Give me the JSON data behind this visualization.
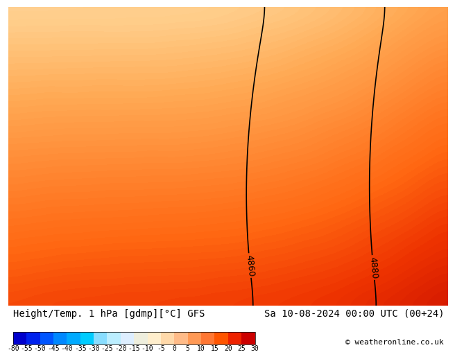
{
  "title_left": "Height/Temp. 1 hPa [gdmp][°C] GFS",
  "title_right": "Sa 10-08-2024 00:00 UTC (00+24)",
  "copyright": "© weatheronline.co.uk",
  "colorbar_levels": [
    -80,
    -55,
    -50,
    -45,
    -40,
    -35,
    -30,
    -25,
    -20,
    -15,
    -10,
    -5,
    0,
    5,
    10,
    15,
    20,
    25,
    30
  ],
  "colorbar_colors": [
    "#0000cd",
    "#0022ee",
    "#0055ff",
    "#0088ff",
    "#00aaff",
    "#00ccff",
    "#88ddff",
    "#bbeeff",
    "#ddeeff",
    "#eeeedd",
    "#ffeecc",
    "#ffd9aa",
    "#ffbb88",
    "#ff9955",
    "#ff7733",
    "#ff5500",
    "#ee2200",
    "#cc0000"
  ],
  "background_color": "#ffffff",
  "map_background": "#ffa040",
  "contour_color": "#000000",
  "contour_linewidth": 1.2,
  "label_fontsize": 9,
  "title_fontsize": 10,
  "colorbar_tick_fontsize": 7
}
